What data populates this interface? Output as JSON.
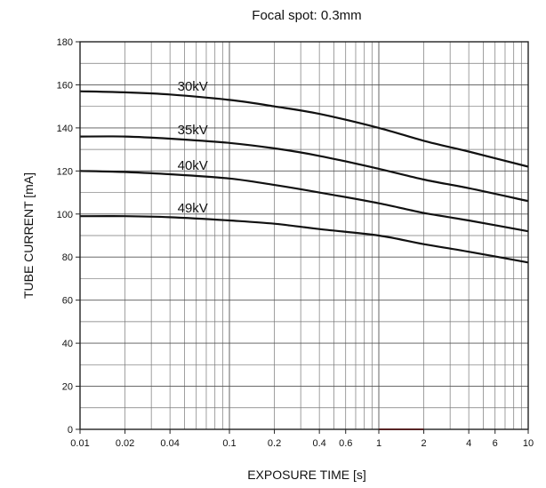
{
  "chart_data": {
    "type": "line",
    "title": "Focal spot: 0.3mm",
    "xlabel": "EXPOSURE TIME [s]",
    "ylabel": "TUBE CURRENT [mA]",
    "xscale": "log",
    "xlim": [
      0.01,
      10
    ],
    "ylim": [
      0,
      180
    ],
    "grid": true,
    "x_ticks": [
      0.01,
      0.02,
      0.04,
      0.1,
      0.2,
      0.4,
      0.6,
      1,
      2,
      4,
      6,
      10
    ],
    "x_tick_labels": [
      "0.01",
      "0.02",
      "0.04",
      "0.1",
      "0.2",
      "0.4",
      "0.6",
      "1",
      "2",
      "4",
      "6",
      "10"
    ],
    "y_ticks": [
      0,
      20,
      40,
      60,
      80,
      100,
      120,
      140,
      160,
      180
    ],
    "y_tick_labels": [
      "0",
      "20",
      "40",
      "60",
      "80",
      "100",
      "120",
      "140",
      "160",
      "180"
    ],
    "highlight_segment": {
      "x": [
        1,
        2
      ],
      "y": 0,
      "color": "#d62728"
    },
    "x": [
      0.01,
      0.02,
      0.04,
      0.1,
      0.2,
      0.4,
      1,
      2,
      4,
      10
    ],
    "series": [
      {
        "name": "30kV",
        "values": [
          157,
          156.5,
          155.5,
          153,
          150,
          146.5,
          140,
          134,
          129,
          122
        ]
      },
      {
        "name": "35kV",
        "values": [
          136,
          136,
          135,
          133,
          130.5,
          127,
          121,
          116,
          112,
          106
        ]
      },
      {
        "name": "40kV",
        "values": [
          120,
          119.5,
          118.5,
          116.5,
          113.5,
          110,
          105,
          100.5,
          97,
          92
        ]
      },
      {
        "name": "49kV",
        "values": [
          99,
          99,
          98.5,
          97,
          95.5,
          93,
          90,
          86,
          82.5,
          77.5
        ]
      }
    ]
  }
}
